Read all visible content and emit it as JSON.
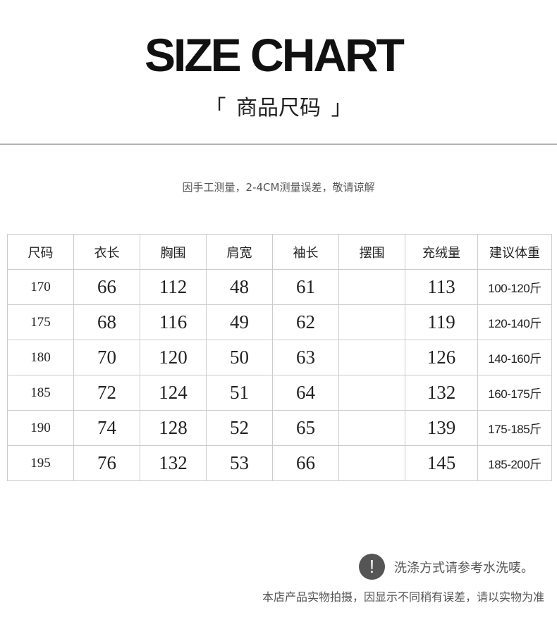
{
  "header": {
    "title": "SIZE CHART",
    "subtitle_open": "「",
    "subtitle": "商品尺码",
    "subtitle_close": "」"
  },
  "note": "因手工测量，2-4CM测量误差，敬请谅解",
  "table": {
    "headers": [
      "尺码",
      "衣长",
      "胸围",
      "肩宽",
      "袖长",
      "摆围",
      "充绒量",
      "建议体重"
    ],
    "rows": [
      [
        "170",
        "66",
        "112",
        "48",
        "61",
        "",
        "113",
        "100-120斤"
      ],
      [
        "175",
        "68",
        "116",
        "49",
        "62",
        "",
        "119",
        "120-140斤"
      ],
      [
        "180",
        "70",
        "120",
        "50",
        "63",
        "",
        "126",
        "140-160斤"
      ],
      [
        "185",
        "72",
        "124",
        "51",
        "64",
        "",
        "132",
        "160-175斤"
      ],
      [
        "190",
        "74",
        "128",
        "52",
        "65",
        "",
        "139",
        "175-185斤"
      ],
      [
        "195",
        "76",
        "132",
        "53",
        "66",
        "",
        "145",
        "185-200斤"
      ]
    ]
  },
  "footer": {
    "icon": "exclamation-icon",
    "icon_glyph": "!",
    "wash_note": "洗涤方式请参考水洗唛。",
    "disclaimer": "本店产品实物拍摄，因显示不同稍有误差，请以实物为准"
  }
}
